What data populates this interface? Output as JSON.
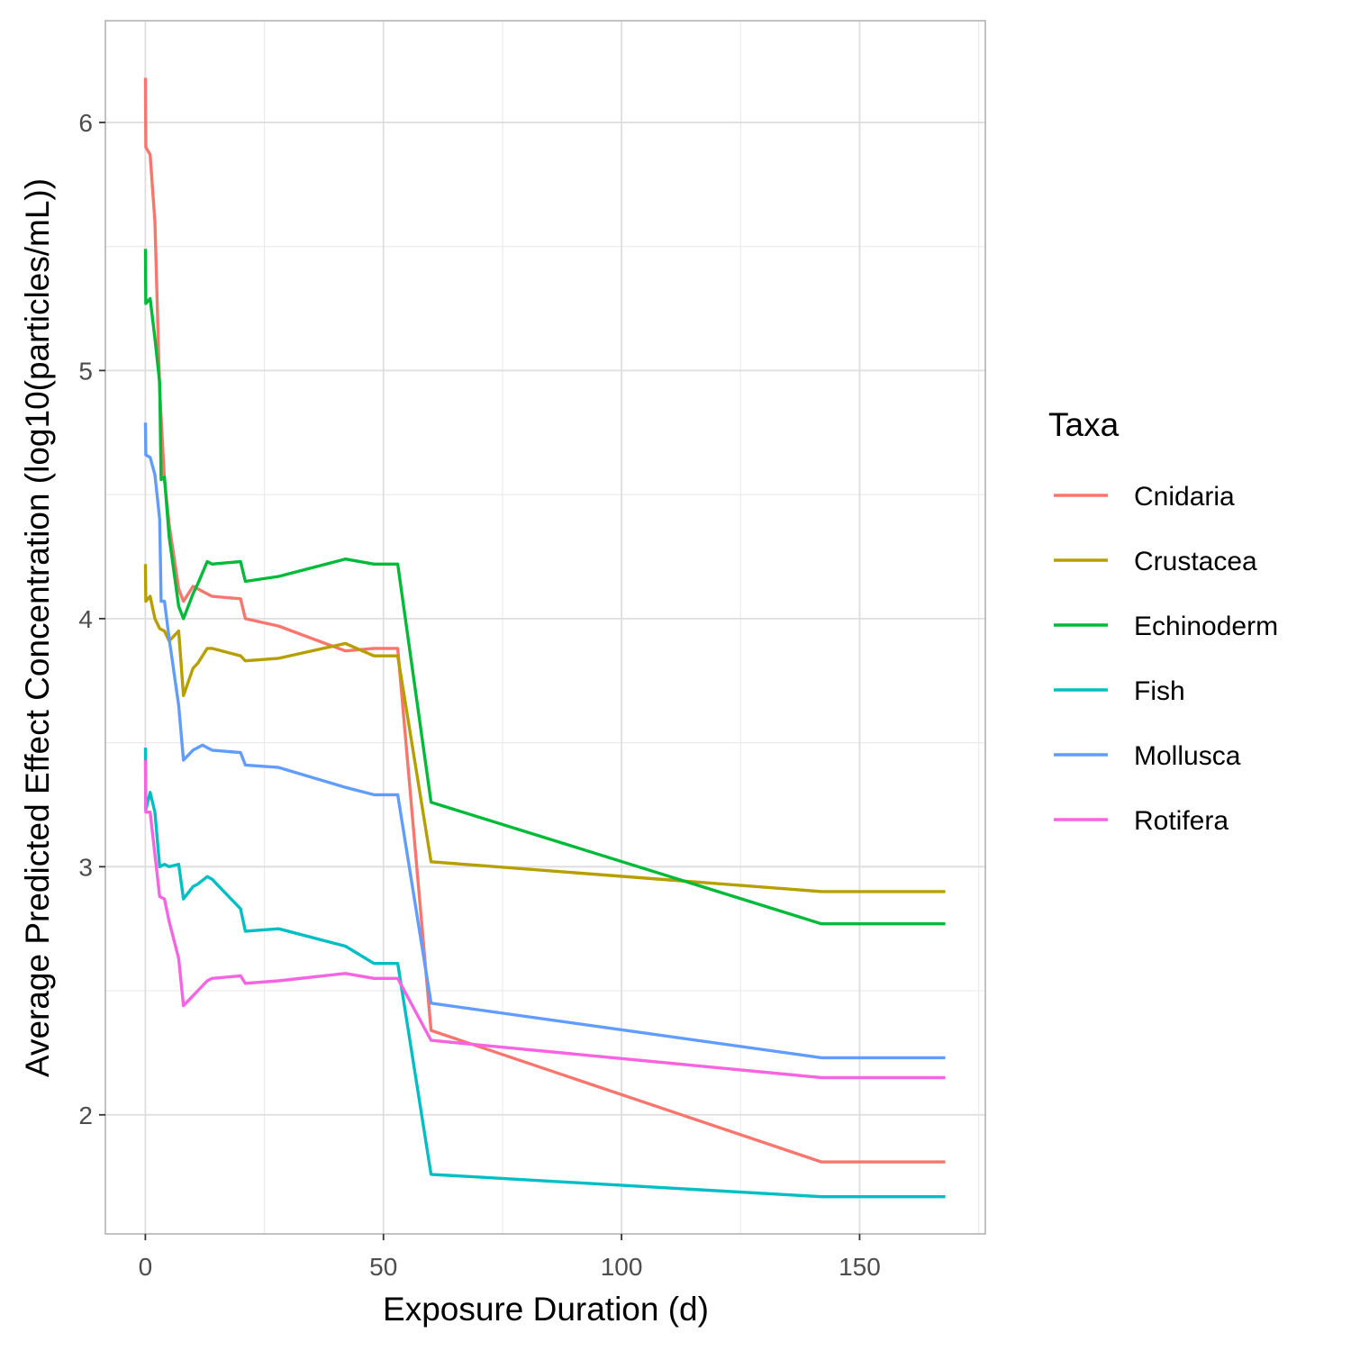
{
  "chart_data": {
    "type": "line",
    "xlabel": "Exposure Duration (d)",
    "ylabel": "Average Predicted Effect Concentration (log10(particles/mL))",
    "xlim": [
      -8.4,
      176.4
    ],
    "ylim": [
      1.52,
      6.41
    ],
    "x_ticks": [
      0,
      50,
      100,
      150
    ],
    "x_tick_labels": [
      "0",
      "50",
      "100",
      "150"
    ],
    "y_ticks": [
      2,
      3,
      4,
      5,
      6
    ],
    "y_tick_labels": [
      "2",
      "3",
      "4",
      "5",
      "6"
    ],
    "grid": true,
    "legend": {
      "title": "Taxa",
      "position": "right"
    },
    "series": [
      {
        "name": "Cnidaria",
        "color": "#F8766D",
        "points": [
          [
            0.02,
            6.18
          ],
          [
            0.1,
            5.9
          ],
          [
            1,
            5.87
          ],
          [
            2,
            5.6
          ],
          [
            3,
            4.92
          ],
          [
            4,
            4.56
          ],
          [
            5,
            4.38
          ],
          [
            7,
            4.12
          ],
          [
            8,
            4.07
          ],
          [
            10,
            4.13
          ],
          [
            12,
            4.11
          ],
          [
            14,
            4.09
          ],
          [
            20,
            4.08
          ],
          [
            21,
            4.0
          ],
          [
            28,
            3.97
          ],
          [
            42,
            3.87
          ],
          [
            48,
            3.88
          ],
          [
            53,
            3.88
          ],
          [
            60,
            2.34
          ],
          [
            142,
            1.81
          ],
          [
            168,
            1.81
          ]
        ]
      },
      {
        "name": "Crustacea",
        "color": "#B79F00",
        "points": [
          [
            0.02,
            4.22
          ],
          [
            0.1,
            4.07
          ],
          [
            1,
            4.09
          ],
          [
            2,
            4.0
          ],
          [
            3,
            3.96
          ],
          [
            4,
            3.95
          ],
          [
            5,
            3.91
          ],
          [
            7,
            3.95
          ],
          [
            8,
            3.69
          ],
          [
            10,
            3.8
          ],
          [
            11,
            3.82
          ],
          [
            13,
            3.88
          ],
          [
            14,
            3.88
          ],
          [
            20,
            3.85
          ],
          [
            21,
            3.83
          ],
          [
            28,
            3.84
          ],
          [
            42,
            3.9
          ],
          [
            48,
            3.85
          ],
          [
            53,
            3.85
          ],
          [
            60,
            3.02
          ],
          [
            142,
            2.9
          ],
          [
            168,
            2.9
          ]
        ]
      },
      {
        "name": "Echinoderm",
        "color": "#00BA38",
        "points": [
          [
            0.02,
            5.49
          ],
          [
            0.1,
            5.27
          ],
          [
            1,
            5.29
          ],
          [
            2,
            5.13
          ],
          [
            3,
            4.95
          ],
          [
            3.3,
            4.56
          ],
          [
            4,
            4.57
          ],
          [
            5,
            4.33
          ],
          [
            7,
            4.05
          ],
          [
            8,
            4.0
          ],
          [
            10,
            4.1
          ],
          [
            11,
            4.14
          ],
          [
            13,
            4.23
          ],
          [
            14,
            4.22
          ],
          [
            20,
            4.23
          ],
          [
            21,
            4.15
          ],
          [
            28,
            4.17
          ],
          [
            42,
            4.24
          ],
          [
            48,
            4.22
          ],
          [
            53,
            4.22
          ],
          [
            60,
            3.26
          ],
          [
            142,
            2.77
          ],
          [
            168,
            2.77
          ]
        ]
      },
      {
        "name": "Fish",
        "color": "#00BFC4",
        "points": [
          [
            0.02,
            3.48
          ],
          [
            0.1,
            3.23
          ],
          [
            1,
            3.3
          ],
          [
            2,
            3.22
          ],
          [
            3,
            3.0
          ],
          [
            4,
            3.01
          ],
          [
            5,
            3.0
          ],
          [
            7,
            3.01
          ],
          [
            8,
            2.87
          ],
          [
            10,
            2.92
          ],
          [
            11,
            2.93
          ],
          [
            13,
            2.96
          ],
          [
            14,
            2.95
          ],
          [
            20,
            2.83
          ],
          [
            21,
            2.74
          ],
          [
            28,
            2.75
          ],
          [
            42,
            2.68
          ],
          [
            48,
            2.61
          ],
          [
            53,
            2.61
          ],
          [
            60,
            1.76
          ],
          [
            142,
            1.67
          ],
          [
            168,
            1.67
          ]
        ]
      },
      {
        "name": "Mollusca",
        "color": "#619CFF",
        "points": [
          [
            0.02,
            4.79
          ],
          [
            0.1,
            4.66
          ],
          [
            1,
            4.65
          ],
          [
            2,
            4.58
          ],
          [
            3,
            4.4
          ],
          [
            3.3,
            4.07
          ],
          [
            4,
            4.07
          ],
          [
            5,
            3.92
          ],
          [
            7,
            3.65
          ],
          [
            8,
            3.43
          ],
          [
            10,
            3.47
          ],
          [
            12,
            3.49
          ],
          [
            13,
            3.48
          ],
          [
            14,
            3.47
          ],
          [
            20,
            3.46
          ],
          [
            21,
            3.41
          ],
          [
            28,
            3.4
          ],
          [
            42,
            3.32
          ],
          [
            48,
            3.29
          ],
          [
            53,
            3.29
          ],
          [
            60,
            2.45
          ],
          [
            142,
            2.23
          ],
          [
            168,
            2.23
          ]
        ]
      },
      {
        "name": "Rotifera",
        "color": "#F564E3",
        "points": [
          [
            0.02,
            3.43
          ],
          [
            0.1,
            3.22
          ],
          [
            1,
            3.22
          ],
          [
            2,
            3.05
          ],
          [
            3,
            2.88
          ],
          [
            4,
            2.87
          ],
          [
            5,
            2.78
          ],
          [
            7,
            2.63
          ],
          [
            8,
            2.44
          ],
          [
            10,
            2.48
          ],
          [
            11,
            2.5
          ],
          [
            13,
            2.54
          ],
          [
            14,
            2.55
          ],
          [
            20,
            2.56
          ],
          [
            21,
            2.53
          ],
          [
            28,
            2.54
          ],
          [
            42,
            2.57
          ],
          [
            48,
            2.55
          ],
          [
            53,
            2.55
          ],
          [
            60,
            2.3
          ],
          [
            142,
            2.15
          ],
          [
            168,
            2.15
          ]
        ]
      }
    ]
  }
}
